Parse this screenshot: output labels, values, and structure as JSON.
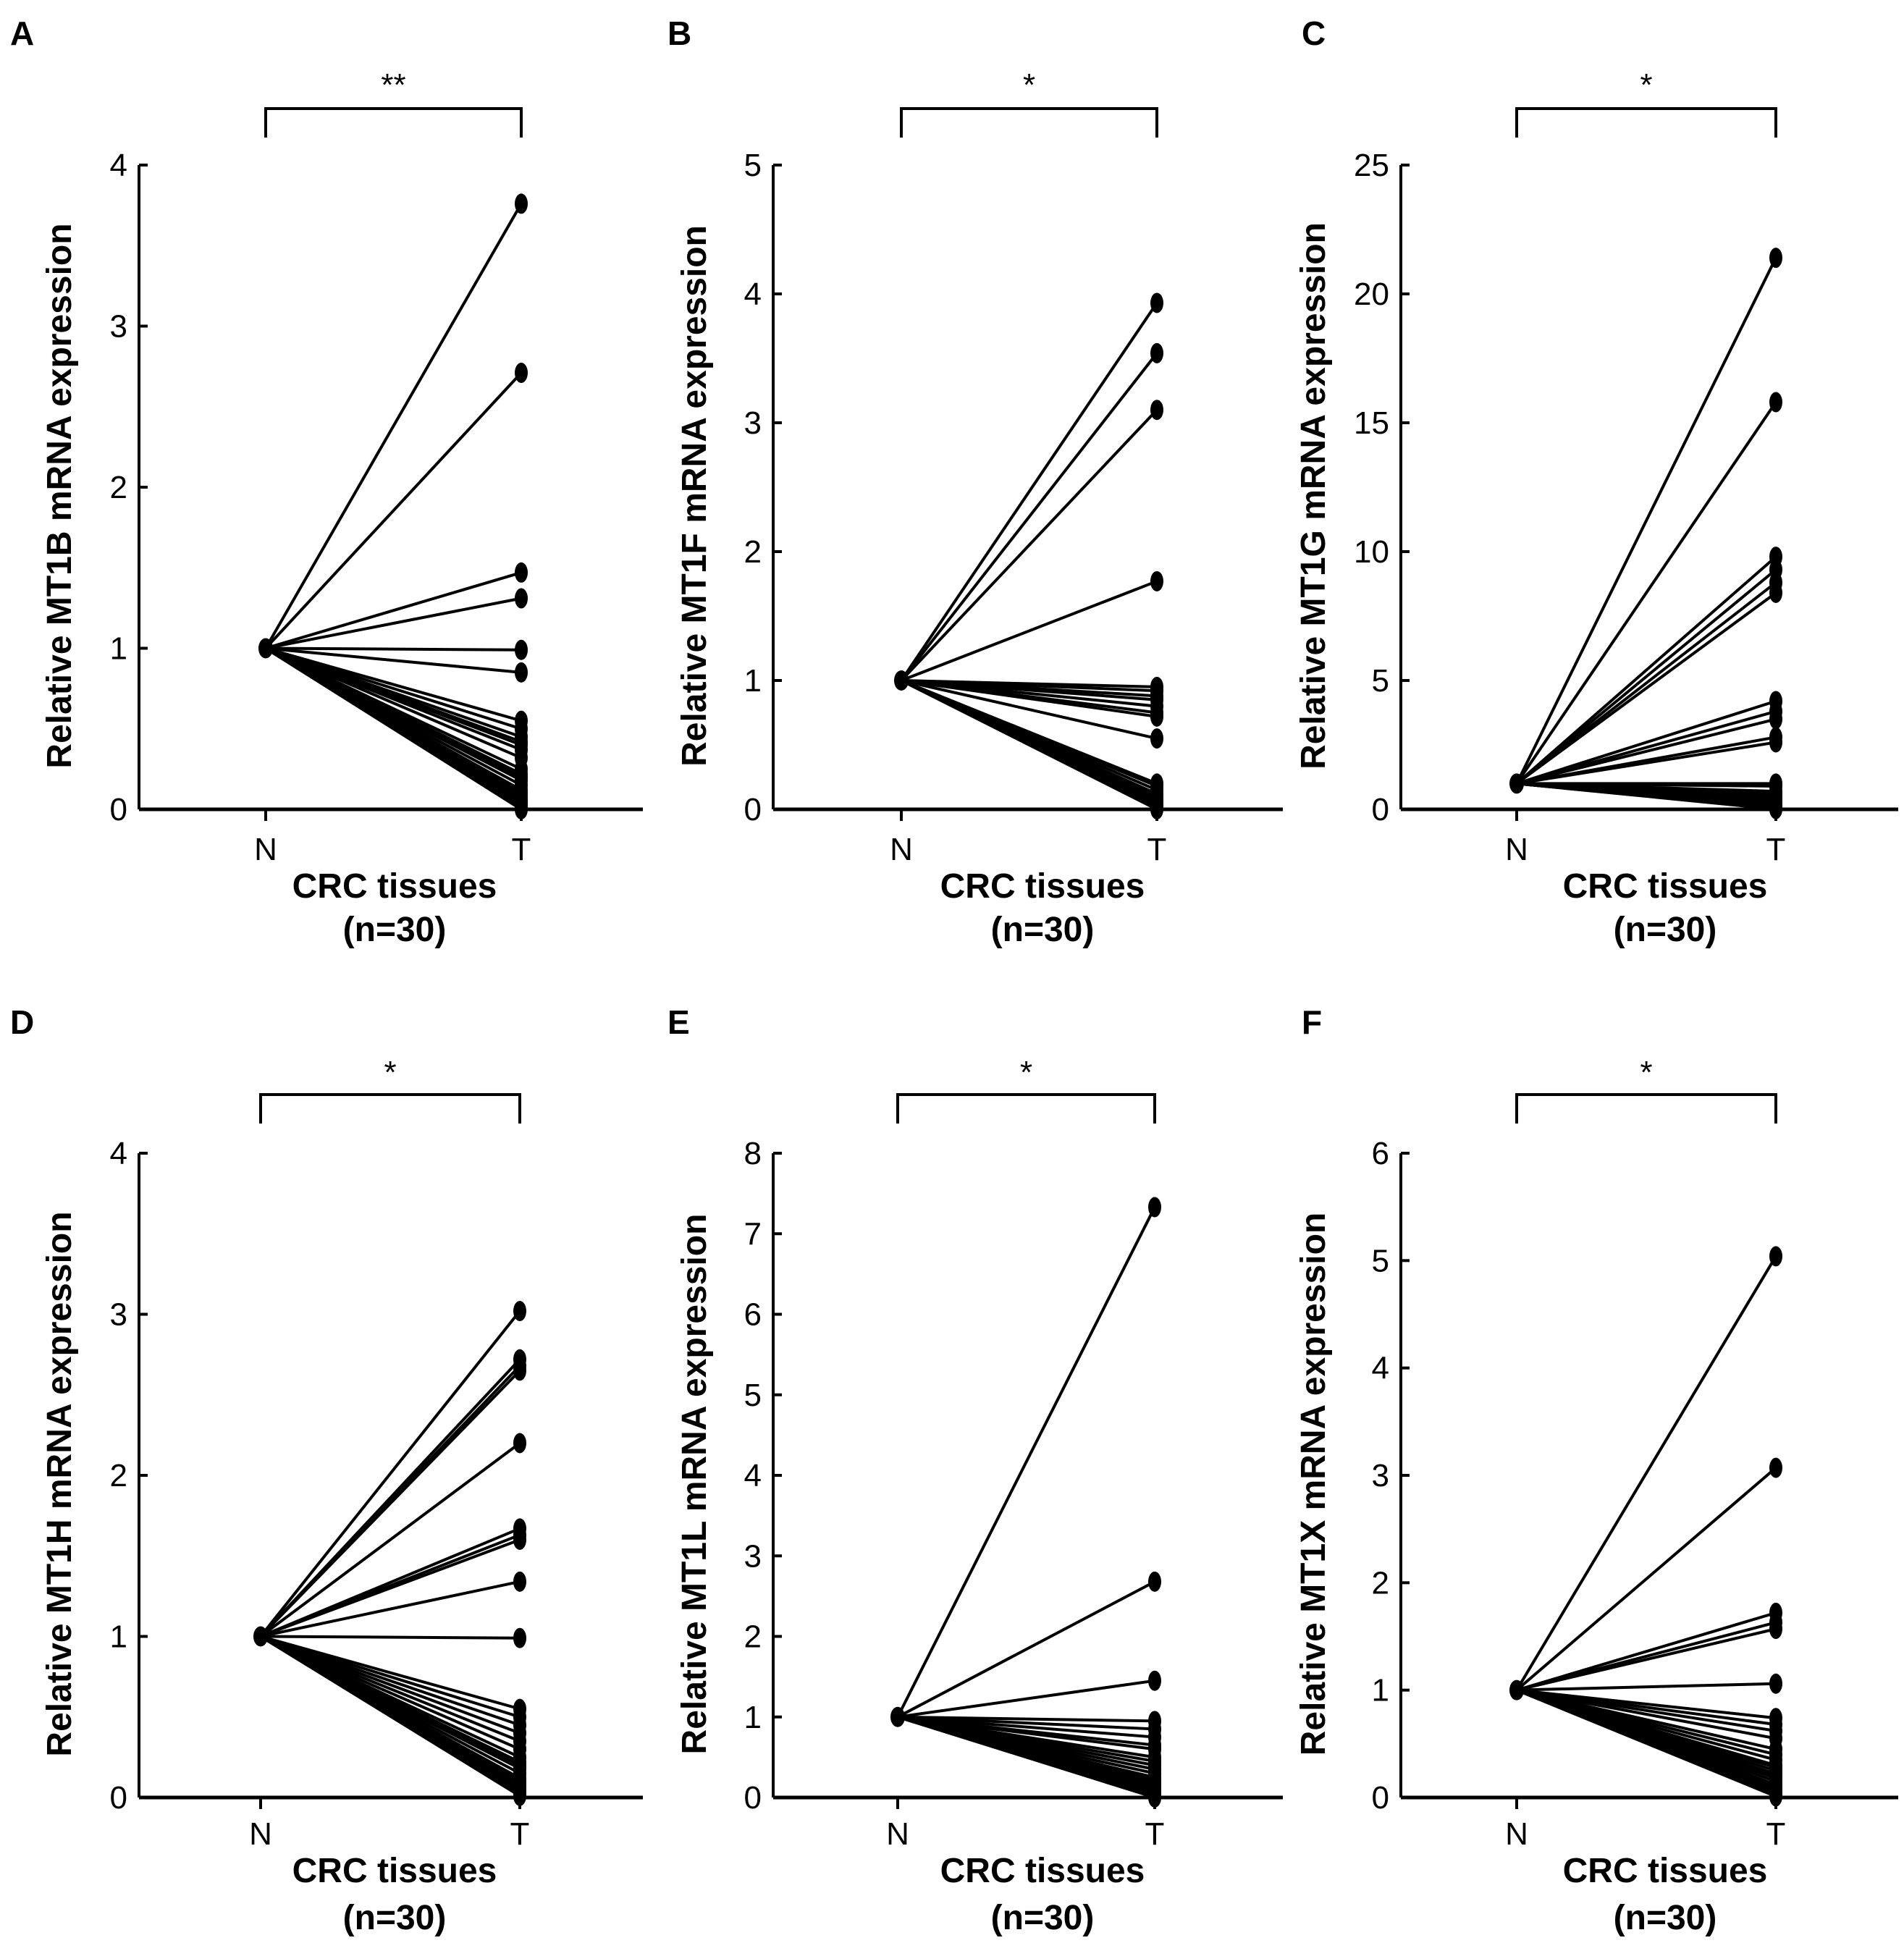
{
  "colors": {
    "ink": "#000000",
    "background": "#ffffff"
  },
  "chart_data": [
    {
      "panel": "A",
      "type": "line",
      "ylabel": "Relative MT1B mRNA expression",
      "xlabel_line1": "CRC tissues",
      "xlabel_line2": "(n=30)",
      "categories": [
        "N",
        "T"
      ],
      "ylim": [
        0,
        4
      ],
      "yticks": [
        0,
        1,
        2,
        3,
        4
      ],
      "significance": "**",
      "series_values_T": [
        3.76,
        2.71,
        1.47,
        1.31,
        0.99,
        0.85,
        0.55,
        0.5,
        0.45,
        0.42,
        0.4,
        0.37,
        0.32,
        0.25,
        0.22,
        0.2,
        0.18,
        0.15,
        0.12,
        0.1,
        0.08,
        0.06,
        0.05,
        0.04,
        0.03,
        0.02,
        0.02,
        0.01,
        0.01,
        0.0
      ],
      "baseline_N": 1
    },
    {
      "panel": "B",
      "type": "line",
      "ylabel": "Relative MT1F mRNA expression",
      "xlabel_line1": "CRC tissues",
      "xlabel_line2": "(n=30)",
      "categories": [
        "N",
        "T"
      ],
      "ylim": [
        0,
        5
      ],
      "yticks": [
        0,
        1,
        2,
        3,
        4,
        5
      ],
      "significance": "*",
      "series_values_T": [
        3.93,
        3.54,
        3.1,
        1.77,
        0.95,
        0.92,
        0.88,
        0.85,
        0.8,
        0.75,
        0.72,
        0.55,
        0.2,
        0.18,
        0.15,
        0.12,
        0.1,
        0.09,
        0.08,
        0.07,
        0.06,
        0.05,
        0.04,
        0.03,
        0.03,
        0.02,
        0.02,
        0.01,
        0.01,
        0.0
      ],
      "baseline_N": 1
    },
    {
      "panel": "C",
      "type": "line",
      "ylabel": "Relative MT1G mRNA expression",
      "xlabel_line1": "CRC tissues",
      "xlabel_line2": "(n=30)",
      "categories": [
        "N",
        "T"
      ],
      "ylim": [
        0,
        25
      ],
      "yticks": [
        0,
        5,
        10,
        15,
        20,
        25
      ],
      "significance": "*",
      "series_values_T": [
        21.4,
        15.8,
        9.8,
        9.3,
        8.8,
        8.4,
        4.2,
        3.8,
        3.5,
        2.8,
        2.6,
        1.0,
        0.9,
        0.7,
        0.6,
        0.5,
        0.45,
        0.4,
        0.35,
        0.3,
        0.25,
        0.2,
        0.18,
        0.15,
        0.12,
        0.1,
        0.08,
        0.05,
        0.03,
        0.01
      ],
      "baseline_N": 1
    },
    {
      "panel": "D",
      "type": "line",
      "ylabel": "Relative MT1H mRNA expression",
      "xlabel_line1": "CRC tissues",
      "xlabel_line2": "(n=30)",
      "categories": [
        "N",
        "T"
      ],
      "ylim": [
        0,
        4
      ],
      "yticks": [
        0,
        1,
        2,
        3,
        4
      ],
      "significance": "*",
      "series_values_T": [
        3.02,
        2.72,
        2.68,
        2.65,
        2.2,
        1.67,
        1.63,
        1.6,
        1.34,
        0.99,
        0.55,
        0.5,
        0.45,
        0.4,
        0.35,
        0.3,
        0.25,
        0.22,
        0.2,
        0.18,
        0.15,
        0.12,
        0.1,
        0.08,
        0.06,
        0.05,
        0.04,
        0.03,
        0.02,
        0.01
      ],
      "baseline_N": 1
    },
    {
      "panel": "E",
      "type": "line",
      "ylabel": "Relative MT1L mRNA expression",
      "xlabel_line1": "CRC tissues",
      "xlabel_line2": "(n=30)",
      "categories": [
        "N",
        "T"
      ],
      "ylim": [
        0,
        8
      ],
      "yticks": [
        0,
        1,
        2,
        3,
        4,
        5,
        6,
        7,
        8
      ],
      "significance": "*",
      "series_values_T": [
        7.33,
        2.68,
        1.45,
        0.95,
        0.85,
        0.75,
        0.65,
        0.6,
        0.5,
        0.45,
        0.4,
        0.35,
        0.3,
        0.25,
        0.22,
        0.2,
        0.18,
        0.15,
        0.12,
        0.1,
        0.09,
        0.08,
        0.07,
        0.06,
        0.05,
        0.04,
        0.03,
        0.02,
        0.01,
        0.0
      ],
      "baseline_N": 1
    },
    {
      "panel": "F",
      "type": "line",
      "ylabel": "Relative MT1X mRNA expression",
      "xlabel_line1": "CRC tissues",
      "xlabel_line2": "(n=30)",
      "categories": [
        "N",
        "T"
      ],
      "ylim": [
        0,
        6
      ],
      "yticks": [
        0,
        1,
        2,
        3,
        4,
        5,
        6
      ],
      "significance": "*",
      "series_values_T": [
        5.04,
        3.07,
        1.72,
        1.63,
        1.57,
        1.06,
        0.74,
        0.68,
        0.62,
        0.55,
        0.45,
        0.4,
        0.35,
        0.3,
        0.28,
        0.25,
        0.22,
        0.2,
        0.18,
        0.15,
        0.12,
        0.1,
        0.09,
        0.08,
        0.06,
        0.05,
        0.04,
        0.03,
        0.02,
        0.01
      ],
      "baseline_N": 1
    }
  ]
}
